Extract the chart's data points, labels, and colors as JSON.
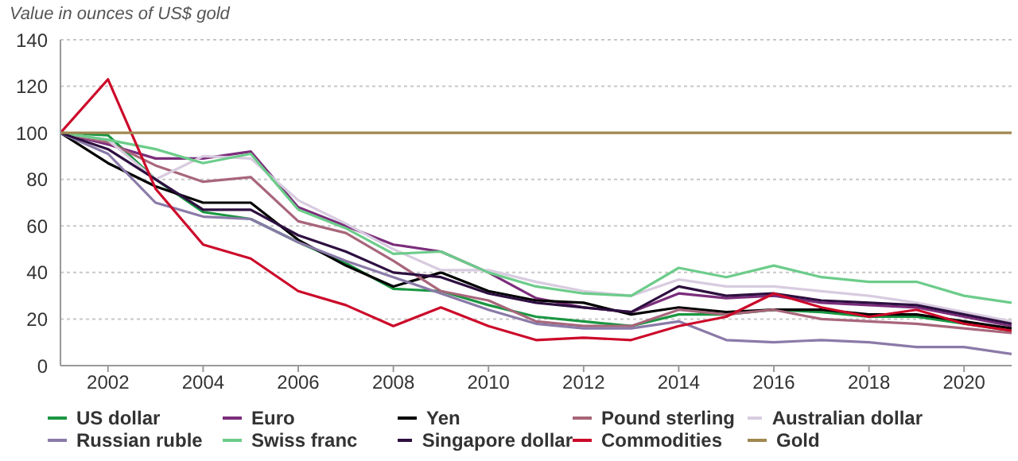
{
  "chart_data": {
    "type": "line",
    "ylabel": "Value in ounces of US$ gold",
    "x": [
      2001,
      2002,
      2003,
      2004,
      2005,
      2006,
      2007,
      2008,
      2009,
      2010,
      2011,
      2012,
      2013,
      2014,
      2015,
      2016,
      2017,
      2018,
      2019,
      2020,
      2021
    ],
    "xlim": [
      2001,
      2021
    ],
    "xticks": [
      2002,
      2004,
      2006,
      2008,
      2010,
      2012,
      2014,
      2016,
      2018,
      2020
    ],
    "ylim": [
      0,
      140
    ],
    "yticks": [
      0,
      20,
      40,
      60,
      80,
      100,
      120,
      140
    ],
    "grid": "y",
    "legend": "bottom",
    "marker": "none",
    "series": [
      {
        "name": "US dollar",
        "color": "#1a9641",
        "values": [
          100,
          99,
          80,
          66,
          63,
          53,
          44,
          33,
          32,
          26,
          21,
          19,
          17,
          22,
          22,
          24,
          23,
          21,
          21,
          18,
          15
        ]
      },
      {
        "name": "Euro",
        "color": "#7b2d7b",
        "values": [
          100,
          95,
          89,
          89,
          92,
          68,
          60,
          52,
          49,
          40,
          29,
          25,
          23,
          31,
          29,
          30,
          27,
          26,
          25,
          21,
          17
        ]
      },
      {
        "name": "Yen",
        "color": "#000000",
        "values": [
          100,
          87,
          77,
          70,
          70,
          54,
          43,
          34,
          40,
          32,
          28,
          27,
          22,
          25,
          23,
          24,
          24,
          22,
          22,
          19,
          16
        ]
      },
      {
        "name": "Pound sterling",
        "color": "#a8667a",
        "values": [
          100,
          96,
          86,
          79,
          81,
          62,
          57,
          45,
          32,
          28,
          19,
          17,
          17,
          24,
          22,
          24,
          20,
          19,
          18,
          16,
          14
        ]
      },
      {
        "name": "Australian dollar",
        "color": "#d8cce0",
        "values": [
          100,
          97,
          80,
          90,
          89,
          71,
          61,
          50,
          41,
          41,
          36,
          32,
          30,
          37,
          34,
          34,
          32,
          30,
          27,
          23,
          19
        ]
      },
      {
        "name": "Russian ruble",
        "color": "#8a7aa8",
        "values": [
          100,
          91,
          70,
          64,
          63,
          53,
          45,
          38,
          31,
          24,
          18,
          16,
          16,
          19,
          11,
          10,
          11,
          10,
          8,
          8,
          5
        ]
      },
      {
        "name": "Swiss franc",
        "color": "#6ccc8a",
        "values": [
          100,
          97,
          93,
          87,
          91,
          67,
          59,
          48,
          49,
          40,
          34,
          31,
          30,
          42,
          38,
          43,
          38,
          36,
          36,
          30,
          27
        ]
      },
      {
        "name": "Singapore dollar",
        "color": "#2d0f40",
        "values": [
          100,
          93,
          80,
          67,
          67,
          56,
          49,
          40,
          38,
          31,
          27,
          25,
          23,
          34,
          30,
          31,
          28,
          27,
          26,
          22,
          18
        ]
      },
      {
        "name": "Commodities",
        "color": "#cc0a2a",
        "values": [
          100,
          123,
          76,
          52,
          46,
          32,
          26,
          17,
          25,
          17,
          11,
          12,
          11,
          17,
          21,
          31,
          25,
          21,
          24,
          18,
          15
        ]
      },
      {
        "name": "Gold",
        "color": "#a08850",
        "values": [
          100,
          100,
          100,
          100,
          100,
          100,
          100,
          100,
          100,
          100,
          100,
          100,
          100,
          100,
          100,
          100,
          100,
          100,
          100,
          100,
          100
        ]
      }
    ]
  }
}
